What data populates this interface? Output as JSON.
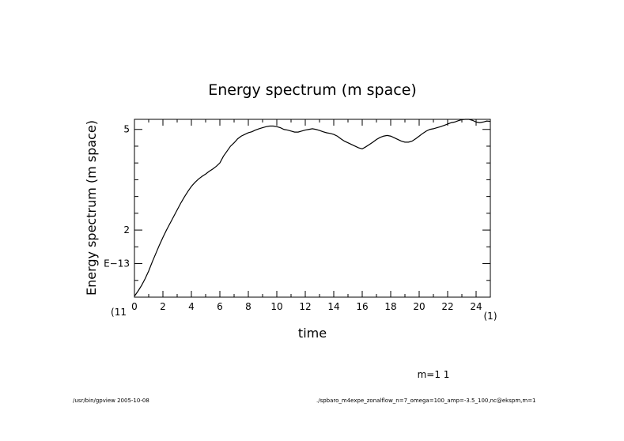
{
  "chart_data": {
    "type": "line",
    "title": "Energy spectrum (m space)",
    "xlabel": "time",
    "ylabel": "Energy spectrum (m space)",
    "x_multiplier_label": "(1)",
    "y_multiplier_label": "(11",
    "xlim": [
      0,
      25
    ],
    "ylim": [
      0,
      5.3
    ],
    "x_ticks": [
      0,
      2,
      4,
      6,
      8,
      10,
      12,
      14,
      16,
      18,
      20,
      22,
      24
    ],
    "x_tick_labels": [
      "0",
      "2",
      "4",
      "6",
      "8",
      "10",
      "12",
      "14",
      "16",
      "18",
      "20",
      "22",
      "24"
    ],
    "y_ticks": [
      1.0,
      2.0,
      5.0
    ],
    "y_tick_labels": [
      "E−13",
      "2",
      "5"
    ],
    "grid": false,
    "series": [
      {
        "x": [
          0.0,
          0.25,
          0.5,
          0.75,
          1.0,
          1.25,
          1.5,
          1.75,
          2.0,
          2.25,
          2.5,
          2.75,
          3.0,
          3.25,
          3.5,
          3.75,
          4.0,
          4.25,
          4.5,
          4.75,
          5.0,
          5.25,
          5.5,
          5.75,
          6.0,
          6.25,
          6.5,
          6.75,
          7.0,
          7.25,
          7.5,
          7.75,
          8.0,
          8.25,
          8.5,
          8.75,
          9.0,
          9.25,
          9.5,
          9.75,
          10.0,
          10.25,
          10.5,
          10.75,
          11.0,
          11.25,
          11.5,
          11.75,
          12.0,
          12.25,
          12.5,
          12.75,
          13.0,
          13.25,
          13.5,
          13.75,
          14.0,
          14.25,
          14.5,
          14.75,
          15.0,
          15.25,
          15.5,
          15.75,
          16.0,
          16.25,
          16.5,
          16.75,
          17.0,
          17.25,
          17.5,
          17.75,
          18.0,
          18.25,
          18.5,
          18.75,
          19.0,
          19.25,
          19.5,
          19.75,
          20.0,
          20.25,
          20.5,
          20.75,
          21.0,
          21.25,
          21.5,
          21.75,
          22.0,
          22.25,
          22.5,
          22.75,
          23.0,
          23.25,
          23.5,
          23.75,
          24.0,
          24.25,
          24.5,
          24.75,
          25.0
        ],
        "values": [
          0.03,
          0.18,
          0.35,
          0.55,
          0.78,
          1.05,
          1.3,
          1.55,
          1.78,
          2.0,
          2.2,
          2.4,
          2.6,
          2.8,
          2.98,
          3.15,
          3.3,
          3.42,
          3.52,
          3.6,
          3.67,
          3.75,
          3.82,
          3.9,
          4.0,
          4.2,
          4.35,
          4.5,
          4.6,
          4.72,
          4.8,
          4.85,
          4.9,
          4.93,
          4.98,
          5.02,
          5.05,
          5.08,
          5.1,
          5.1,
          5.08,
          5.05,
          5.0,
          4.98,
          4.95,
          4.92,
          4.92,
          4.95,
          4.98,
          5.0,
          5.02,
          5.0,
          4.97,
          4.93,
          4.9,
          4.88,
          4.85,
          4.8,
          4.72,
          4.65,
          4.6,
          4.55,
          4.5,
          4.45,
          4.42,
          4.48,
          4.55,
          4.62,
          4.7,
          4.76,
          4.8,
          4.82,
          4.8,
          4.75,
          4.7,
          4.65,
          4.62,
          4.62,
          4.65,
          4.72,
          4.8,
          4.88,
          4.95,
          5.0,
          5.02,
          5.05,
          5.08,
          5.12,
          5.16,
          5.2,
          5.22,
          5.26,
          5.29,
          5.3,
          5.3,
          5.27,
          5.22,
          5.2,
          5.22,
          5.25,
          5.24
        ]
      }
    ]
  },
  "labels": {
    "mode_label": "m=1 1",
    "footer_left": "/usr/bin/gpview  2005-10-08",
    "footer_right": "./spbaro_m4expe_zonalflow_n=7_omega=100_amp=-3.5_100,nc@ekspm,m=1"
  }
}
